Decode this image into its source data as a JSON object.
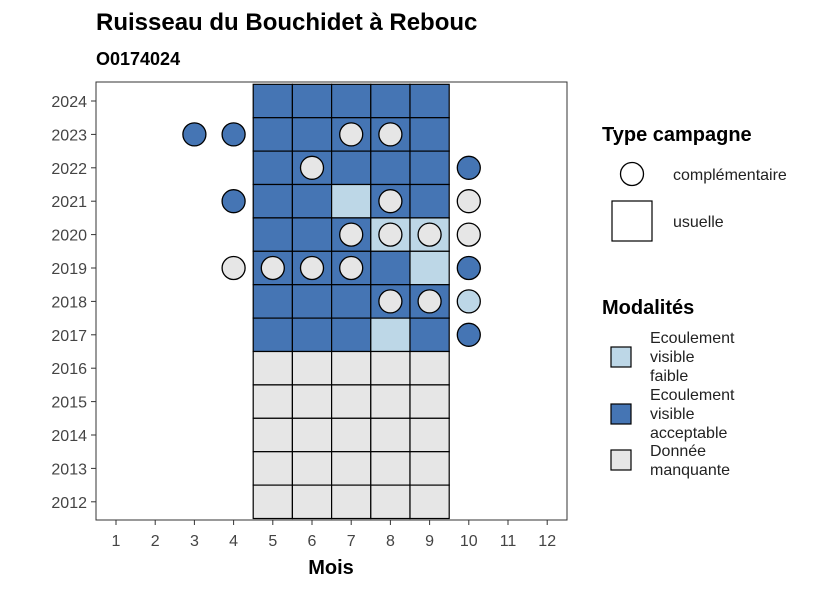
{
  "chart_data": {
    "type": "heatmap",
    "title": "Ruisseau du Bouchidet à Rebouc",
    "subtitle": "O0174024",
    "xlabel": "Mois",
    "ylabel": "",
    "x_ticks": [
      "1",
      "2",
      "3",
      "4",
      "5",
      "6",
      "7",
      "8",
      "9",
      "10",
      "11",
      "12"
    ],
    "y_ticks": [
      "2012",
      "2013",
      "2014",
      "2015",
      "2016",
      "2017",
      "2018",
      "2019",
      "2020",
      "2021",
      "2022",
      "2023",
      "2024"
    ],
    "colors": {
      "faible": "#bdd7e7",
      "acceptable": "#4575b4",
      "manquante": "#e6e6e6"
    },
    "tiles": [
      {
        "year": 2024,
        "months": [
          5,
          6,
          7,
          8,
          9
        ],
        "status": [
          "acceptable",
          "acceptable",
          "acceptable",
          "acceptable",
          "acceptable"
        ]
      },
      {
        "year": 2023,
        "months": [
          5,
          6,
          7,
          8,
          9
        ],
        "status": [
          "acceptable",
          "acceptable",
          "acceptable",
          "acceptable",
          "acceptable"
        ]
      },
      {
        "year": 2022,
        "months": [
          5,
          6,
          7,
          8,
          9
        ],
        "status": [
          "acceptable",
          "acceptable",
          "acceptable",
          "acceptable",
          "acceptable"
        ]
      },
      {
        "year": 2021,
        "months": [
          5,
          6,
          7,
          8,
          9
        ],
        "status": [
          "acceptable",
          "acceptable",
          "faible",
          "acceptable",
          "acceptable"
        ]
      },
      {
        "year": 2020,
        "months": [
          5,
          6,
          7,
          8,
          9
        ],
        "status": [
          "acceptable",
          "acceptable",
          "acceptable",
          "faible",
          "faible"
        ]
      },
      {
        "year": 2019,
        "months": [
          5,
          6,
          7,
          8,
          9
        ],
        "status": [
          "acceptable",
          "acceptable",
          "acceptable",
          "acceptable",
          "faible"
        ]
      },
      {
        "year": 2018,
        "months": [
          5,
          6,
          7,
          8,
          9
        ],
        "status": [
          "acceptable",
          "acceptable",
          "acceptable",
          "acceptable",
          "acceptable"
        ]
      },
      {
        "year": 2017,
        "months": [
          5,
          6,
          7,
          8,
          9
        ],
        "status": [
          "acceptable",
          "acceptable",
          "acceptable",
          "faible",
          "acceptable"
        ]
      },
      {
        "year": 2016,
        "months": [
          5,
          6,
          7,
          8,
          9
        ],
        "status": [
          "manquante",
          "manquante",
          "manquante",
          "manquante",
          "manquante"
        ]
      },
      {
        "year": 2015,
        "months": [
          5,
          6,
          7,
          8,
          9
        ],
        "status": [
          "manquante",
          "manquante",
          "manquante",
          "manquante",
          "manquante"
        ]
      },
      {
        "year": 2014,
        "months": [
          5,
          6,
          7,
          8,
          9
        ],
        "status": [
          "manquante",
          "manquante",
          "manquante",
          "manquante",
          "manquante"
        ]
      },
      {
        "year": 2013,
        "months": [
          5,
          6,
          7,
          8,
          9
        ],
        "status": [
          "manquante",
          "manquante",
          "manquante",
          "manquante",
          "manquante"
        ]
      },
      {
        "year": 2012,
        "months": [
          5,
          6,
          7,
          8,
          9
        ],
        "status": [
          "manquante",
          "manquante",
          "manquante",
          "manquante",
          "manquante"
        ]
      }
    ],
    "points": [
      {
        "year": 2023,
        "month": 3,
        "status": "acceptable"
      },
      {
        "year": 2023,
        "month": 4,
        "status": "acceptable"
      },
      {
        "year": 2023,
        "month": 7,
        "status": "manquante"
      },
      {
        "year": 2023,
        "month": 8,
        "status": "manquante"
      },
      {
        "year": 2022,
        "month": 6,
        "status": "manquante"
      },
      {
        "year": 2022,
        "month": 10,
        "status": "acceptable"
      },
      {
        "year": 2021,
        "month": 4,
        "status": "acceptable"
      },
      {
        "year": 2021,
        "month": 8,
        "status": "manquante"
      },
      {
        "year": 2021,
        "month": 10,
        "status": "manquante"
      },
      {
        "year": 2020,
        "month": 7,
        "status": "manquante"
      },
      {
        "year": 2020,
        "month": 8,
        "status": "manquante"
      },
      {
        "year": 2020,
        "month": 9,
        "status": "manquante"
      },
      {
        "year": 2020,
        "month": 10,
        "status": "manquante"
      },
      {
        "year": 2019,
        "month": 4,
        "status": "manquante"
      },
      {
        "year": 2019,
        "month": 5,
        "status": "manquante"
      },
      {
        "year": 2019,
        "month": 6,
        "status": "manquante"
      },
      {
        "year": 2019,
        "month": 7,
        "status": "manquante"
      },
      {
        "year": 2019,
        "month": 10,
        "status": "acceptable"
      },
      {
        "year": 2018,
        "month": 8,
        "status": "manquante"
      },
      {
        "year": 2018,
        "month": 9,
        "status": "manquante"
      },
      {
        "year": 2018,
        "month": 10,
        "status": "faible"
      },
      {
        "year": 2017,
        "month": 10,
        "status": "acceptable"
      }
    ],
    "legend_type": {
      "title": "Type campagne",
      "items": [
        {
          "shape": "circle",
          "label": "complémentaire"
        },
        {
          "shape": "square",
          "label": "usuelle"
        }
      ]
    },
    "legend_modalites": {
      "title": "Modalités",
      "items": [
        {
          "status": "faible",
          "lines": [
            "Ecoulement",
            "visible",
            "faible"
          ]
        },
        {
          "status": "acceptable",
          "lines": [
            "Ecoulement",
            "visible",
            "acceptable"
          ]
        },
        {
          "status": "manquante",
          "lines": [
            "Donnée",
            "manquante"
          ]
        }
      ]
    },
    "grid": false,
    "legend_position": "right"
  }
}
